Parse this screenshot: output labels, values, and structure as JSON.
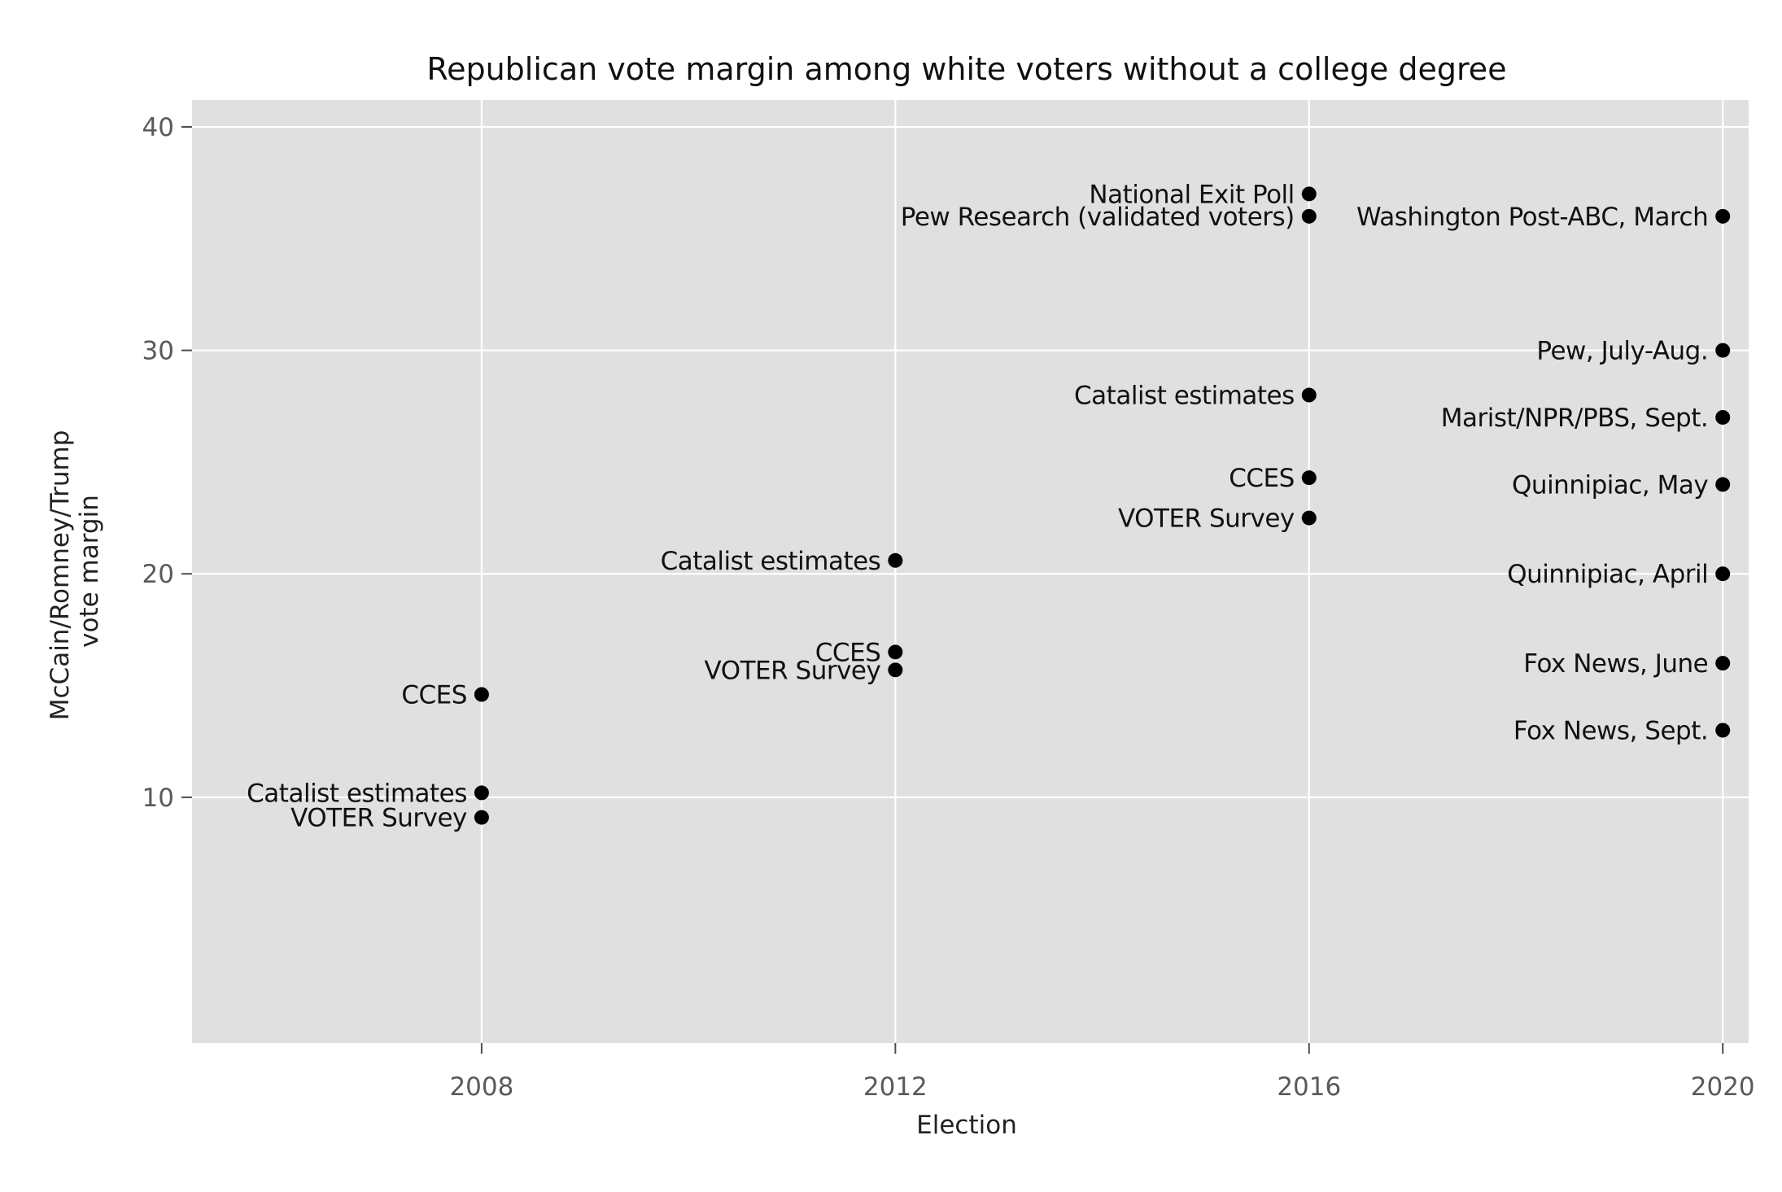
{
  "chart_data": {
    "type": "scatter",
    "title": "Republican vote margin among white voters without a college degree",
    "xlabel": "Election",
    "ylabel_lines": [
      "McCain/Romney/Trump",
      "vote margin"
    ],
    "xlim": [
      2005.2,
      2020.25
    ],
    "ylim": [
      -1,
      41.2
    ],
    "x_ticks": [
      2008,
      2012,
      2016,
      2020
    ],
    "x_tick_labels": [
      "2008",
      "2012",
      "2016",
      "2020"
    ],
    "y_ticks": [
      10,
      20,
      30,
      40
    ],
    "y_tick_labels": [
      "10",
      "20",
      "30",
      "40"
    ],
    "grid": true,
    "panel_color": "#e0e0e0",
    "grid_color": "#ffffff",
    "point_color": "#000000",
    "points": [
      {
        "x": 2008,
        "y": 14.6,
        "label": "CCES"
      },
      {
        "x": 2008,
        "y": 10.2,
        "label": "Catalist estimates"
      },
      {
        "x": 2008,
        "y": 9.1,
        "label": "VOTER Survey"
      },
      {
        "x": 2012,
        "y": 20.6,
        "label": "Catalist estimates"
      },
      {
        "x": 2012,
        "y": 16.5,
        "label": "CCES"
      },
      {
        "x": 2012,
        "y": 15.7,
        "label": "VOTER Survey"
      },
      {
        "x": 2016,
        "y": 37.0,
        "label": "National Exit Poll"
      },
      {
        "x": 2016,
        "y": 36.0,
        "label": "Pew Research (validated voters)"
      },
      {
        "x": 2016,
        "y": 28.0,
        "label": "Catalist estimates"
      },
      {
        "x": 2016,
        "y": 24.3,
        "label": "CCES"
      },
      {
        "x": 2016,
        "y": 22.5,
        "label": "VOTER Survey"
      },
      {
        "x": 2020,
        "y": 36.0,
        "label": "Washington Post-ABC, March"
      },
      {
        "x": 2020,
        "y": 30.0,
        "label": "Pew, July-Aug."
      },
      {
        "x": 2020,
        "y": 27.0,
        "label": "Marist/NPR/PBS, Sept."
      },
      {
        "x": 2020,
        "y": 24.0,
        "label": "Quinnipiac, May"
      },
      {
        "x": 2020,
        "y": 20.0,
        "label": "Quinnipiac, April"
      },
      {
        "x": 2020,
        "y": 16.0,
        "label": "Fox News, June"
      },
      {
        "x": 2020,
        "y": 13.0,
        "label": "Fox News, Sept."
      }
    ]
  }
}
